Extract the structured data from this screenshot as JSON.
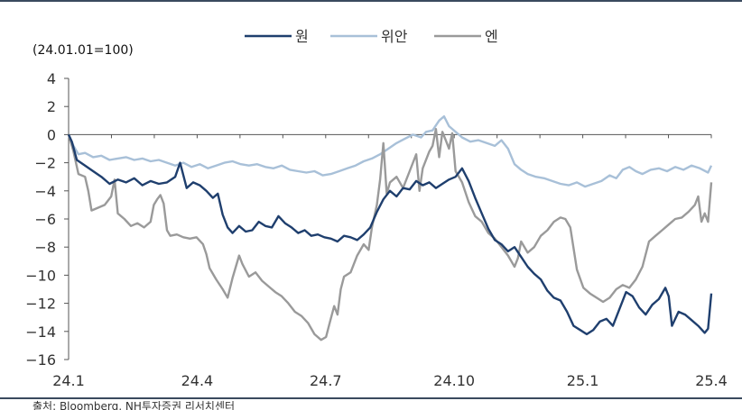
{
  "chart_data": {
    "type": "line",
    "subtitle": "(24.01.01=100)",
    "x_ticks": [
      "24.1",
      "24.4",
      "24.7",
      "24.10",
      "25.1",
      "25.4"
    ],
    "ylim": [
      -16,
      4
    ],
    "y_ticks": [
      "4",
      "2",
      "0",
      "−2",
      "−4",
      "−6",
      "−8",
      "−10",
      "−12",
      "−14",
      "−16"
    ],
    "grid": false,
    "legend_position": "top-center",
    "source": "출처: Bloomberg, NH투자증권 리서치센터",
    "series": [
      {
        "name": "원",
        "color": "#1f3f6e",
        "points": [
          [
            0,
            0
          ],
          [
            2,
            -0.5
          ],
          [
            5,
            -1.8
          ],
          [
            10,
            -2.2
          ],
          [
            15,
            -2.6
          ],
          [
            20,
            -3.0
          ],
          [
            25,
            -3.5
          ],
          [
            30,
            -3.2
          ],
          [
            35,
            -3.4
          ],
          [
            40,
            -3.1
          ],
          [
            45,
            -3.6
          ],
          [
            50,
            -3.3
          ],
          [
            55,
            -3.5
          ],
          [
            60,
            -3.4
          ],
          [
            65,
            -3.0
          ],
          [
            68,
            -2.0
          ],
          [
            72,
            -3.8
          ],
          [
            76,
            -3.4
          ],
          [
            80,
            -3.6
          ],
          [
            84,
            -4.0
          ],
          [
            88,
            -4.5
          ],
          [
            91,
            -4.2
          ],
          [
            94,
            -5.7
          ],
          [
            97,
            -6.6
          ],
          [
            100,
            -7.0
          ],
          [
            104,
            -6.5
          ],
          [
            108,
            -6.9
          ],
          [
            112,
            -6.8
          ],
          [
            116,
            -6.2
          ],
          [
            120,
            -6.5
          ],
          [
            124,
            -6.6
          ],
          [
            128,
            -5.8
          ],
          [
            132,
            -6.3
          ],
          [
            136,
            -6.6
          ],
          [
            140,
            -7.0
          ],
          [
            144,
            -6.8
          ],
          [
            148,
            -7.2
          ],
          [
            152,
            -7.1
          ],
          [
            156,
            -7.3
          ],
          [
            160,
            -7.4
          ],
          [
            164,
            -7.6
          ],
          [
            168,
            -7.2
          ],
          [
            172,
            -7.3
          ],
          [
            176,
            -7.5
          ],
          [
            180,
            -7.1
          ],
          [
            184,
            -6.6
          ],
          [
            188,
            -5.5
          ],
          [
            192,
            -4.6
          ],
          [
            196,
            -4.0
          ],
          [
            200,
            -4.4
          ],
          [
            204,
            -3.8
          ],
          [
            208,
            -3.9
          ],
          [
            212,
            -3.3
          ],
          [
            216,
            -3.6
          ],
          [
            220,
            -3.4
          ],
          [
            224,
            -3.8
          ],
          [
            228,
            -3.5
          ],
          [
            232,
            -3.2
          ],
          [
            236,
            -3.0
          ],
          [
            240,
            -2.4
          ],
          [
            244,
            -3.3
          ],
          [
            248,
            -4.5
          ],
          [
            252,
            -5.6
          ],
          [
            256,
            -6.7
          ],
          [
            260,
            -7.5
          ],
          [
            264,
            -7.8
          ],
          [
            268,
            -8.3
          ],
          [
            272,
            -8.0
          ],
          [
            276,
            -8.7
          ],
          [
            280,
            -9.4
          ],
          [
            284,
            -9.9
          ],
          [
            288,
            -10.3
          ],
          [
            292,
            -11.1
          ],
          [
            296,
            -11.6
          ],
          [
            300,
            -11.8
          ],
          [
            304,
            -12.6
          ],
          [
            308,
            -13.6
          ],
          [
            312,
            -13.9
          ],
          [
            316,
            -14.2
          ],
          [
            320,
            -13.9
          ],
          [
            324,
            -13.3
          ],
          [
            328,
            -13.1
          ],
          [
            332,
            -13.6
          ],
          [
            336,
            -12.4
          ],
          [
            340,
            -11.2
          ],
          [
            344,
            -11.5
          ],
          [
            348,
            -12.3
          ],
          [
            352,
            -12.8
          ],
          [
            356,
            -12.1
          ],
          [
            360,
            -11.7
          ],
          [
            364,
            -10.9
          ],
          [
            366,
            -11.5
          ],
          [
            368,
            -13.6
          ],
          [
            372,
            -12.6
          ],
          [
            376,
            -12.8
          ],
          [
            380,
            -13.2
          ],
          [
            384,
            -13.6
          ],
          [
            388,
            -14.1
          ],
          [
            390,
            -13.8
          ],
          [
            392,
            -11.3
          ]
        ]
      },
      {
        "name": "위안",
        "color": "#a8c0d8",
        "points": [
          [
            0,
            0
          ],
          [
            3,
            -0.8
          ],
          [
            6,
            -1.4
          ],
          [
            10,
            -1.3
          ],
          [
            15,
            -1.6
          ],
          [
            20,
            -1.5
          ],
          [
            25,
            -1.8
          ],
          [
            30,
            -1.7
          ],
          [
            35,
            -1.6
          ],
          [
            40,
            -1.8
          ],
          [
            45,
            -1.7
          ],
          [
            50,
            -1.9
          ],
          [
            55,
            -1.8
          ],
          [
            60,
            -2.0
          ],
          [
            65,
            -2.2
          ],
          [
            70,
            -2.0
          ],
          [
            75,
            -2.3
          ],
          [
            80,
            -2.1
          ],
          [
            85,
            -2.4
          ],
          [
            90,
            -2.2
          ],
          [
            95,
            -2.0
          ],
          [
            100,
            -1.9
          ],
          [
            105,
            -2.1
          ],
          [
            110,
            -2.2
          ],
          [
            115,
            -2.1
          ],
          [
            120,
            -2.3
          ],
          [
            125,
            -2.4
          ],
          [
            130,
            -2.2
          ],
          [
            135,
            -2.5
          ],
          [
            140,
            -2.6
          ],
          [
            145,
            -2.7
          ],
          [
            150,
            -2.6
          ],
          [
            155,
            -2.9
          ],
          [
            160,
            -2.8
          ],
          [
            165,
            -2.6
          ],
          [
            170,
            -2.4
          ],
          [
            175,
            -2.2
          ],
          [
            180,
            -1.9
          ],
          [
            185,
            -1.7
          ],
          [
            190,
            -1.4
          ],
          [
            195,
            -1.0
          ],
          [
            200,
            -0.6
          ],
          [
            205,
            -0.3
          ],
          [
            210,
            0.0
          ],
          [
            215,
            -0.2
          ],
          [
            218,
            0.2
          ],
          [
            222,
            0.3
          ],
          [
            226,
            1.0
          ],
          [
            229,
            1.3
          ],
          [
            232,
            0.6
          ],
          [
            236,
            0.2
          ],
          [
            240,
            -0.2
          ],
          [
            245,
            -0.5
          ],
          [
            250,
            -0.4
          ],
          [
            255,
            -0.6
          ],
          [
            260,
            -0.8
          ],
          [
            264,
            -0.4
          ],
          [
            268,
            -1.0
          ],
          [
            272,
            -2.1
          ],
          [
            276,
            -2.5
          ],
          [
            280,
            -2.8
          ],
          [
            285,
            -3.0
          ],
          [
            290,
            -3.1
          ],
          [
            295,
            -3.3
          ],
          [
            300,
            -3.5
          ],
          [
            305,
            -3.6
          ],
          [
            310,
            -3.4
          ],
          [
            315,
            -3.7
          ],
          [
            320,
            -3.5
          ],
          [
            325,
            -3.3
          ],
          [
            330,
            -2.9
          ],
          [
            334,
            -3.1
          ],
          [
            338,
            -2.5
          ],
          [
            342,
            -2.3
          ],
          [
            346,
            -2.6
          ],
          [
            350,
            -2.8
          ],
          [
            355,
            -2.5
          ],
          [
            360,
            -2.4
          ],
          [
            365,
            -2.6
          ],
          [
            370,
            -2.3
          ],
          [
            375,
            -2.5
          ],
          [
            380,
            -2.2
          ],
          [
            385,
            -2.4
          ],
          [
            390,
            -2.7
          ],
          [
            392,
            -2.2
          ]
        ]
      },
      {
        "name": "엔",
        "color": "#9a9a9a",
        "points": [
          [
            0,
            0
          ],
          [
            3,
            -1.2
          ],
          [
            6,
            -2.8
          ],
          [
            10,
            -3.0
          ],
          [
            12,
            -4.0
          ],
          [
            14,
            -5.4
          ],
          [
            18,
            -5.2
          ],
          [
            22,
            -5.0
          ],
          [
            26,
            -4.4
          ],
          [
            28,
            -3.2
          ],
          [
            30,
            -5.6
          ],
          [
            34,
            -6.0
          ],
          [
            38,
            -6.5
          ],
          [
            42,
            -6.3
          ],
          [
            46,
            -6.6
          ],
          [
            50,
            -6.2
          ],
          [
            52,
            -5.0
          ],
          [
            54,
            -4.6
          ],
          [
            56,
            -4.3
          ],
          [
            58,
            -4.9
          ],
          [
            60,
            -6.8
          ],
          [
            62,
            -7.2
          ],
          [
            66,
            -7.1
          ],
          [
            70,
            -7.3
          ],
          [
            74,
            -7.4
          ],
          [
            78,
            -7.3
          ],
          [
            82,
            -7.8
          ],
          [
            84,
            -8.5
          ],
          [
            86,
            -9.5
          ],
          [
            90,
            -10.3
          ],
          [
            94,
            -11.0
          ],
          [
            97,
            -11.6
          ],
          [
            100,
            -10.2
          ],
          [
            104,
            -8.6
          ],
          [
            106,
            -9.2
          ],
          [
            110,
            -10.1
          ],
          [
            114,
            -9.8
          ],
          [
            118,
            -10.4
          ],
          [
            122,
            -10.8
          ],
          [
            126,
            -11.2
          ],
          [
            130,
            -11.5
          ],
          [
            134,
            -12.0
          ],
          [
            138,
            -12.6
          ],
          [
            142,
            -12.9
          ],
          [
            146,
            -13.4
          ],
          [
            150,
            -14.2
          ],
          [
            154,
            -14.6
          ],
          [
            157,
            -14.4
          ],
          [
            159,
            -13.5
          ],
          [
            162,
            -12.2
          ],
          [
            164,
            -12.8
          ],
          [
            166,
            -11.0
          ],
          [
            168,
            -10.1
          ],
          [
            172,
            -9.8
          ],
          [
            176,
            -8.6
          ],
          [
            180,
            -7.8
          ],
          [
            183,
            -8.2
          ],
          [
            185,
            -6.6
          ],
          [
            188,
            -5.0
          ],
          [
            190,
            -3.2
          ],
          [
            192,
            -0.6
          ],
          [
            194,
            -4.2
          ],
          [
            196,
            -3.4
          ],
          [
            200,
            -3.0
          ],
          [
            204,
            -3.8
          ],
          [
            208,
            -2.6
          ],
          [
            212,
            -1.4
          ],
          [
            214,
            -4.0
          ],
          [
            216,
            -2.4
          ],
          [
            220,
            -1.2
          ],
          [
            222,
            -0.8
          ],
          [
            224,
            0.4
          ],
          [
            226,
            -1.6
          ],
          [
            228,
            0.2
          ],
          [
            230,
            -0.4
          ],
          [
            232,
            -1.0
          ],
          [
            234,
            0.1
          ],
          [
            236,
            -2.6
          ],
          [
            240,
            -3.4
          ],
          [
            244,
            -4.8
          ],
          [
            248,
            -5.8
          ],
          [
            252,
            -6.2
          ],
          [
            256,
            -7.0
          ],
          [
            260,
            -7.4
          ],
          [
            264,
            -8.0
          ],
          [
            268,
            -8.6
          ],
          [
            272,
            -9.4
          ],
          [
            274,
            -8.8
          ],
          [
            276,
            -7.6
          ],
          [
            280,
            -8.4
          ],
          [
            284,
            -8.0
          ],
          [
            288,
            -7.2
          ],
          [
            292,
            -6.8
          ],
          [
            296,
            -6.2
          ],
          [
            300,
            -5.9
          ],
          [
            303,
            -6.0
          ],
          [
            306,
            -6.6
          ],
          [
            310,
            -9.6
          ],
          [
            314,
            -10.9
          ],
          [
            318,
            -11.3
          ],
          [
            322,
            -11.6
          ],
          [
            326,
            -11.9
          ],
          [
            330,
            -11.6
          ],
          [
            334,
            -11.0
          ],
          [
            338,
            -10.7
          ],
          [
            342,
            -10.9
          ],
          [
            346,
            -10.3
          ],
          [
            350,
            -9.4
          ],
          [
            354,
            -7.6
          ],
          [
            358,
            -7.2
          ],
          [
            362,
            -6.8
          ],
          [
            366,
            -6.4
          ],
          [
            370,
            -6.0
          ],
          [
            374,
            -5.9
          ],
          [
            378,
            -5.5
          ],
          [
            382,
            -5.0
          ],
          [
            384,
            -4.4
          ],
          [
            386,
            -6.2
          ],
          [
            388,
            -5.6
          ],
          [
            390,
            -6.2
          ],
          [
            392,
            -3.4
          ]
        ]
      }
    ]
  }
}
